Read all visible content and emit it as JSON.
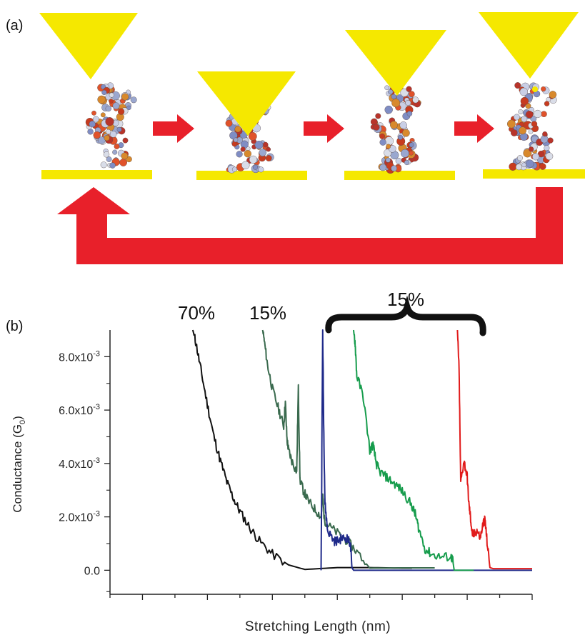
{
  "panel_a": {
    "label": "(a)",
    "tip_color": "#f5e800",
    "electrode_color": "#f5e800",
    "arrow_color": "#e8202a"
  },
  "panel_b": {
    "label": "(b)",
    "annotations": [
      "70%",
      "15%",
      "15%"
    ]
  },
  "chart_data": {
    "type": "line",
    "xlabel": "Stretching Length (nm)",
    "ylabel": "Conductance (G",
    "ylabel_sub": "0",
    "ylabel_close": ")",
    "ylim": [
      -0.0009,
      0.009
    ],
    "xlim": [
      0,
      13
    ],
    "x_tick_labels": [],
    "y_ticks": [
      {
        "value": 0,
        "mant": "0.0",
        "exp": ""
      },
      {
        "value": 0.002,
        "mant": "2.0x10",
        "exp": "-3"
      },
      {
        "value": 0.004,
        "mant": "4.0x10",
        "exp": "-3"
      },
      {
        "value": 0.006,
        "mant": "6.0x10",
        "exp": "-3"
      },
      {
        "value": 0.008,
        "mant": "8.0x10",
        "exp": "-3"
      }
    ],
    "series": [
      {
        "color": "#111111",
        "x": [
          2.55,
          2.65,
          2.8,
          3.0,
          3.2,
          3.4,
          3.6,
          3.8,
          4.0,
          4.3,
          4.6,
          5.0,
          5.5,
          6.0,
          7.0,
          8.0,
          9.0,
          9.3
        ],
        "y": [
          0.009,
          0.0085,
          0.0075,
          0.0062,
          0.005,
          0.0041,
          0.0033,
          0.0027,
          0.0022,
          0.0016,
          0.0011,
          0.0006,
          0.0002,
          3e-05,
          0.0001,
          0.0001,
          8e-05,
          8e-05
        ]
      },
      {
        "color": "#3a6a4e",
        "x": [
          4.7,
          4.75,
          4.85,
          5.0,
          5.2,
          5.35,
          5.4,
          5.45,
          5.5,
          5.6,
          5.75,
          5.8,
          5.85,
          5.95,
          6.1,
          6.3,
          6.5,
          6.55,
          6.6,
          6.7,
          7.0,
          7.3,
          7.6,
          8.0,
          9.0,
          10.0
        ],
        "y": [
          0.009,
          0.0086,
          0.0077,
          0.0068,
          0.006,
          0.0054,
          0.0063,
          0.0049,
          0.0045,
          0.0041,
          0.0037,
          0.0068,
          0.0034,
          0.003,
          0.0026,
          0.0023,
          0.002,
          0.0028,
          0.0019,
          0.0017,
          0.0014,
          0.0011,
          0.0007,
          8e-05,
          9e-05,
          9e-05
        ]
      },
      {
        "color": "#1f2a8a",
        "x": [
          6.5,
          6.55,
          6.58,
          6.62,
          6.7,
          6.9,
          7.0,
          7.15,
          7.3,
          7.4,
          7.45,
          7.5,
          7.6,
          8.5,
          13.0
        ],
        "y": [
          0.0,
          0.009,
          0.0055,
          0.0025,
          0.0015,
          0.0011,
          0.0011,
          0.0012,
          0.0012,
          0.001,
          0.0001,
          0.0,
          0.0,
          0.0,
          0.0
        ]
      },
      {
        "color": "#169c4c",
        "x": [
          7.5,
          7.55,
          7.6,
          7.8,
          8.0,
          8.1,
          8.2,
          8.3,
          8.5,
          8.7,
          8.9,
          9.1,
          9.3,
          9.4,
          9.5,
          9.7,
          9.9,
          10.2,
          10.5,
          10.55,
          10.6,
          10.7,
          11.2
        ],
        "y": [
          0.009,
          0.0085,
          0.0073,
          0.0065,
          0.0045,
          0.0047,
          0.004,
          0.0037,
          0.0035,
          0.0033,
          0.0031,
          0.0028,
          0.0024,
          0.0021,
          0.0016,
          0.0008,
          0.0006,
          0.0005,
          0.0005,
          0.0004,
          0.0,
          0.0,
          0.0
        ]
      },
      {
        "color": "#e11b1b",
        "x": [
          10.7,
          10.75,
          10.8,
          10.9,
          11.0,
          11.05,
          11.1,
          11.15,
          11.2,
          11.3,
          11.4,
          11.5,
          11.55,
          11.6,
          11.7,
          11.8,
          13.0
        ],
        "y": [
          0.009,
          0.0075,
          0.0033,
          0.0041,
          0.0035,
          0.0025,
          0.002,
          0.0014,
          0.0013,
          0.0015,
          0.0012,
          0.0018,
          0.0019,
          0.0012,
          0.0001,
          6e-05,
          6e-05
        ]
      }
    ]
  }
}
